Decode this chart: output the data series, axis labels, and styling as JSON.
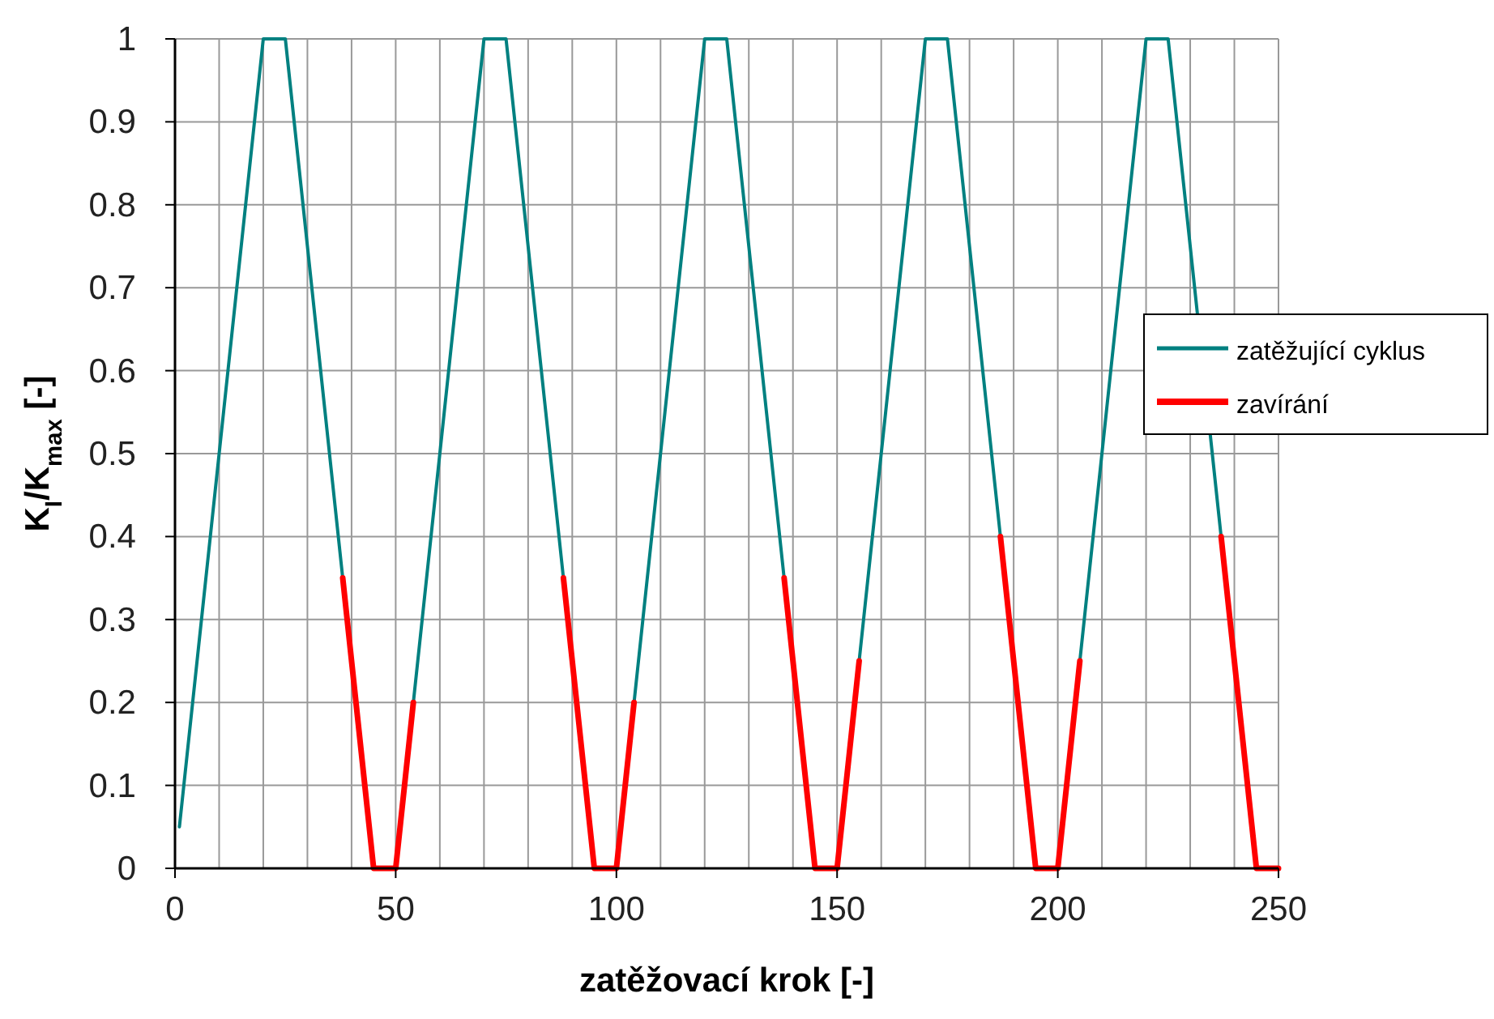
{
  "chart_data": {
    "type": "line",
    "xlabel": "zatěžovací krok  [-]",
    "ylabel": "K$_{I}$/K$_{max}$ [-]",
    "xlim": [
      0,
      250
    ],
    "xticks": [
      0,
      50,
      100,
      150,
      200,
      250
    ],
    "ylim": [
      0,
      1
    ],
    "yticks": [
      0,
      0.1,
      0.2,
      0.3,
      0.4,
      0.5,
      0.6,
      0.7,
      0.8,
      0.9,
      1
    ],
    "grid": true,
    "legend": "right",
    "marker": "none",
    "line_style": "solid",
    "series": [
      {
        "name": "zatěžující cyklus",
        "color": "#008080",
        "x": [
          1,
          20,
          25,
          38,
          46,
          54,
          70,
          75,
          88,
          96,
          104,
          120,
          125,
          138,
          146,
          155,
          170,
          175,
          187,
          196,
          205,
          220,
          225,
          237
        ],
        "values": [
          0.05,
          1,
          1,
          0.35,
          null,
          0.2,
          1,
          1,
          0.35,
          null,
          0.2,
          1,
          1,
          0.35,
          null,
          0.25,
          1,
          1,
          0.4,
          null,
          0.25,
          1,
          1,
          0.4
        ]
      },
      {
        "name": "zavírání",
        "color": "#ff0000",
        "x": [
          38,
          45,
          50,
          54,
          60,
          88,
          95,
          100,
          104,
          110,
          138,
          145,
          150,
          155,
          160,
          187,
          195,
          200,
          205,
          210,
          237,
          245,
          250
        ],
        "values": [
          0.35,
          0,
          0,
          0.2,
          null,
          0.35,
          0,
          0,
          0.2,
          null,
          0.35,
          0,
          0,
          0.25,
          null,
          0.4,
          0,
          0,
          0.25,
          null,
          0.4,
          0,
          0
        ]
      }
    ]
  }
}
